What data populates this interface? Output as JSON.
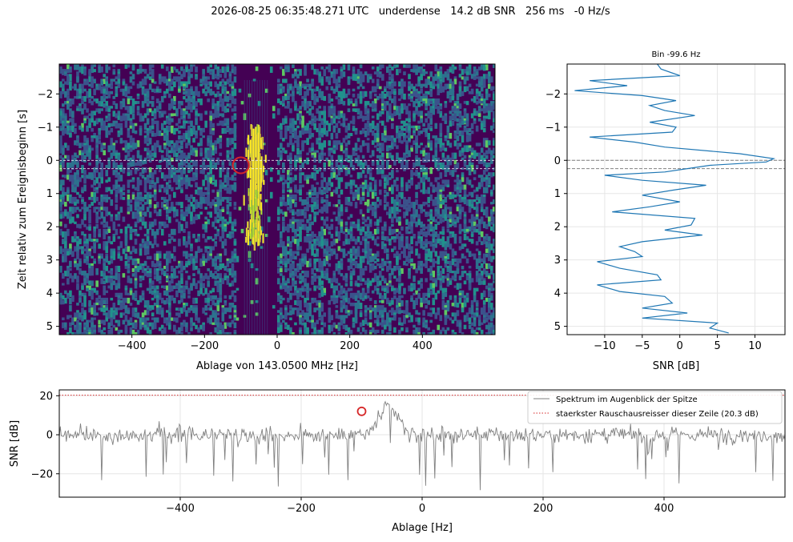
{
  "figure_title": "2026-08-25 06:35:48.271 UTC   underdense   14.2 dB SNR   256 ms   -0 Hz/s",
  "colors": {
    "line": "#1f77b4",
    "spectrum": "#808080",
    "threshold": "#d62728",
    "marker": "#d62728",
    "grid": "#e6e6e6"
  },
  "chart_data": [
    {
      "type": "heatmap",
      "panel": "waterfall",
      "xlabel": "Ablage von 143.0500 MHz [Hz]",
      "ylabel": "Zeit relativ zum Ereignisbeginn [s]",
      "xlim": [
        -600,
        600
      ],
      "ylim": [
        5.25,
        -2.9
      ],
      "y_inverted": true,
      "x_ticks": [
        -400,
        -200,
        0,
        200,
        400
      ],
      "x_tick_labels": [
        "−400",
        "−200",
        "0",
        "200",
        "400"
      ],
      "y_ticks": [
        -2,
        -1,
        0,
        1,
        2,
        3,
        4,
        5
      ],
      "y_tick_labels": [
        "−2",
        "−1",
        "0",
        "1",
        "2",
        "3",
        "4",
        "5"
      ],
      "colormap": "viridis",
      "signal_trace": {
        "x_center_hz": -60,
        "x_halfwidth_hz": 22,
        "t_start_s": -1.1,
        "t_end_s": 2.4
      },
      "dashed_lines_s": [
        0.0,
        0.25
      ],
      "marker": {
        "x": -100,
        "y": 0.15
      }
    },
    {
      "type": "line",
      "panel": "snr_profile",
      "title": "Bin -99.6 Hz",
      "xlabel": "SNR [dB]",
      "xlim": [
        -15,
        14
      ],
      "ylim": [
        5.25,
        -2.9
      ],
      "x_ticks": [
        -10,
        -5,
        0,
        5,
        10
      ],
      "x_tick_labels": [
        "−10",
        "−5",
        "0",
        "5",
        "10"
      ],
      "y_ticks": [
        -2,
        -1,
        0,
        1,
        2,
        3,
        4,
        5
      ],
      "y_tick_labels": [
        "−2",
        "−1",
        "0",
        "1",
        "2",
        "3",
        "4",
        "5"
      ],
      "grid": true,
      "dashed_lines_s": [
        0.0,
        0.25
      ],
      "series": [
        {
          "t": [
            -2.9,
            -2.75,
            -2.55,
            -2.4,
            -2.25,
            -2.1,
            -1.95,
            -1.8,
            -1.65,
            -1.5,
            -1.35,
            -1.15,
            -1.0,
            -0.85,
            -0.7,
            -0.55,
            -0.4,
            -0.2,
            -0.05,
            0.05,
            0.15,
            0.25,
            0.35,
            0.45,
            0.6,
            0.75,
            0.9,
            1.05,
            1.25,
            1.4,
            1.55,
            1.75,
            1.95,
            2.1,
            2.25,
            2.45,
            2.6,
            2.75,
            2.9,
            3.05,
            3.25,
            3.45,
            3.6,
            3.75,
            3.95,
            4.1,
            4.3,
            4.45,
            4.6,
            4.75,
            4.9,
            5.05,
            5.2
          ],
          "snr": [
            -3,
            -2.5,
            0,
            -12,
            -7,
            -14,
            -5,
            -0.5,
            -4,
            -2,
            2,
            -4,
            -0.5,
            -1,
            -12,
            -6,
            -2,
            8,
            12.5,
            11.5,
            4,
            1,
            -2,
            -10,
            -5,
            3.5,
            -1,
            -5,
            0,
            -4,
            -9,
            2,
            1.5,
            -2,
            3,
            -5,
            -8,
            -6,
            -5,
            -11,
            -8,
            -3,
            -2.5,
            -11,
            -8,
            -2,
            -1,
            -5,
            1,
            -5,
            5,
            4,
            6.5
          ]
        }
      ]
    },
    {
      "type": "line",
      "panel": "spectrum",
      "xlabel": "Ablage [Hz]",
      "ylabel": "SNR [dB]",
      "xlim": [
        -600,
        600
      ],
      "ylim": [
        -32,
        23
      ],
      "x_ticks": [
        -400,
        -200,
        0,
        200,
        400
      ],
      "x_tick_labels": [
        "−400",
        "−200",
        "0",
        "200",
        "400"
      ],
      "y_ticks": [
        -20,
        0,
        20
      ],
      "y_tick_labels": [
        "−20",
        "0",
        "20"
      ],
      "grid": true,
      "threshold_db": 20.3,
      "marker": {
        "x": -100,
        "y": 12
      },
      "series": [
        {
          "name": "Spektrum im Augenblick der Spitze",
          "peak_x_hz": -55,
          "peak_y_db": 20
        },
        {
          "name": "staerkster Rauschausreisser dieser Zeile (20.3 dB)"
        }
      ],
      "legend_position": "top-right"
    }
  ]
}
